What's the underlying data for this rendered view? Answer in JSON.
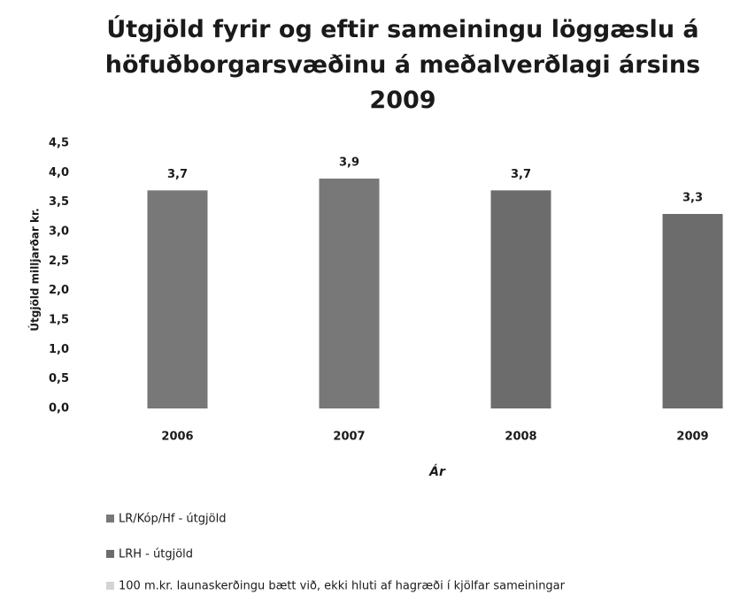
{
  "chart_data": {
    "type": "bar",
    "title": "Útgjöld fyrir og eftir sameiningu löggæslu á\nhöfuðborgarsvæðinu á meðalverðlagi ársins\n2009",
    "x_label": "Ár",
    "y_label": "Útgjöld milljarðar kr.",
    "categories": [
      "2006",
      "2007",
      "2008",
      "2009"
    ],
    "series": [
      {
        "name": "LR/Kóp/Hf - útgjöld",
        "color": "#787878",
        "values": [
          3.7,
          3.9,
          null,
          null
        ],
        "value_labels": [
          "3,7",
          "3,9",
          null,
          null
        ]
      },
      {
        "name": "LRH - útgjöld",
        "color": "#6c6c6c",
        "values": [
          null,
          null,
          3.7,
          3.3
        ],
        "value_labels": [
          null,
          null,
          "3,7",
          "3,3"
        ]
      },
      {
        "name": "100 m.kr. launaskerðingu bætt við, ekki hluti af hagræði í kjölfar sameiningar",
        "color": "#d4d4d4",
        "values": [
          null,
          null,
          null,
          null
        ]
      }
    ],
    "stacked": true,
    "ylim": [
      0,
      4.5
    ],
    "yticks": [
      {
        "value": 0,
        "label": "0,0"
      },
      {
        "value": 0.5,
        "label": "0,5"
      },
      {
        "value": 1,
        "label": "1,0"
      },
      {
        "value": 1.5,
        "label": "1,5"
      },
      {
        "value": 2,
        "label": "2,0"
      },
      {
        "value": 2.5,
        "label": "2,5"
      },
      {
        "value": 3,
        "label": "3,0"
      },
      {
        "value": 3.5,
        "label": "3,5"
      },
      {
        "value": 4,
        "label": "4,0"
      },
      {
        "value": 4.5,
        "label": "4,5"
      }
    ],
    "grid": false,
    "legend": "bottom"
  }
}
